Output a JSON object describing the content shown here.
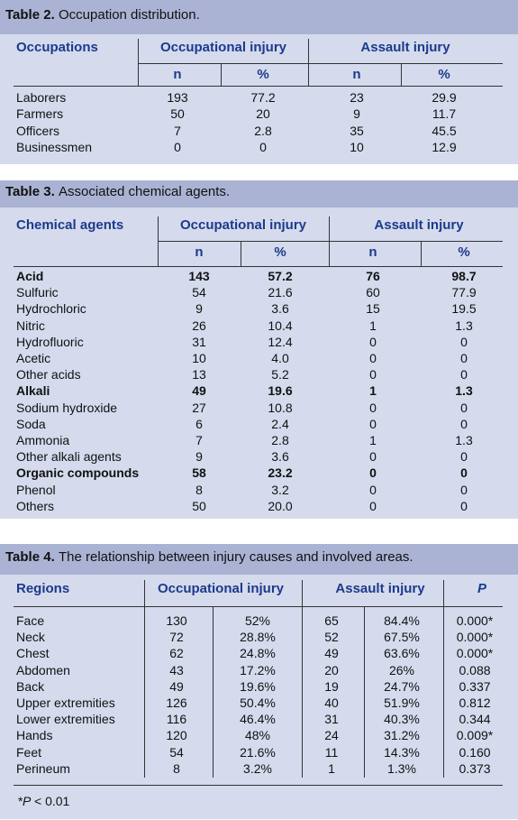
{
  "tables": [
    {
      "label": "Table 2.",
      "title": "Occupation distribution.",
      "header": {
        "first": "Occupations",
        "groups": [
          "Occupational injury",
          "Assault injury"
        ],
        "subheaders": [
          "n",
          "%",
          "n",
          "%"
        ]
      },
      "rows": [
        {
          "cells": [
            "Laborers",
            "193",
            "77.2",
            "23",
            "29.9"
          ]
        },
        {
          "cells": [
            "Farmers",
            "50",
            "20",
            "9",
            "11.7"
          ]
        },
        {
          "cells": [
            "Officers",
            "7",
            "2.8",
            "35",
            "45.5"
          ]
        },
        {
          "cells": [
            "Businessmen",
            "0",
            "0",
            "10",
            "12.9"
          ]
        }
      ]
    },
    {
      "label": "Table 3.",
      "title": "Associated chemical agents.",
      "header": {
        "first": "Chemical agents",
        "groups": [
          "Occupational injury",
          "Assault injury"
        ],
        "subheaders": [
          "n",
          "%",
          "n",
          "%"
        ]
      },
      "rows": [
        {
          "cells": [
            "Acid",
            "143",
            "57.2",
            "76",
            "98.7"
          ],
          "bold": true
        },
        {
          "cells": [
            "Sulfuric",
            "54",
            "21.6",
            "60",
            "77.9"
          ]
        },
        {
          "cells": [
            "Hydrochloric",
            "9",
            "3.6",
            "15",
            "19.5"
          ]
        },
        {
          "cells": [
            "Nitric",
            "26",
            "10.4",
            "1",
            "1.3"
          ]
        },
        {
          "cells": [
            "Hydrofluoric",
            "31",
            "12.4",
            "0",
            "0"
          ]
        },
        {
          "cells": [
            "Acetic",
            "10",
            "4.0",
            "0",
            "0"
          ]
        },
        {
          "cells": [
            "Other acids",
            "13",
            "5.2",
            "0",
            "0"
          ]
        },
        {
          "cells": [
            "Alkali",
            "49",
            "19.6",
            "1",
            "1.3"
          ],
          "bold": true
        },
        {
          "cells": [
            "Sodium hydroxide",
            "27",
            "10.8",
            "0",
            "0"
          ]
        },
        {
          "cells": [
            "Soda",
            "6",
            "2.4",
            "0",
            "0"
          ]
        },
        {
          "cells": [
            "Ammonia",
            "7",
            "2.8",
            "1",
            "1.3"
          ]
        },
        {
          "cells": [
            "Other alkali agents",
            "9",
            "3.6",
            "0",
            "0"
          ]
        },
        {
          "cells": [
            "Organic compounds",
            "58",
            "23.2",
            "0",
            "0"
          ],
          "bold": true
        },
        {
          "cells": [
            "Phenol",
            "8",
            "3.2",
            "0",
            "0"
          ]
        },
        {
          "cells": [
            "Others",
            "50",
            "20.0",
            "0",
            "0"
          ]
        }
      ]
    },
    {
      "label": "Table 4.",
      "title": "The relationship between injury causes and involved areas.",
      "header": {
        "first": "Regions",
        "groups": [
          "Occupational injury",
          "Assault injury",
          "P"
        ]
      },
      "rows": [
        {
          "cells": [
            "Face",
            "130",
            "52%",
            "65",
            "84.4%",
            "0.000*"
          ]
        },
        {
          "cells": [
            "Neck",
            "72",
            "28.8%",
            "52",
            "67.5%",
            "0.000*"
          ]
        },
        {
          "cells": [
            "Chest",
            "62",
            "24.8%",
            "49",
            "63.6%",
            "0.000*"
          ]
        },
        {
          "cells": [
            "Abdomen",
            "43",
            "17.2%",
            "20",
            "26%",
            "0.088"
          ]
        },
        {
          "cells": [
            "Back",
            "49",
            "19.6%",
            "19",
            "24.7%",
            "0.337"
          ]
        },
        {
          "cells": [
            "Upper extremities",
            "126",
            "50.4%",
            "40",
            "51.9%",
            "0.812"
          ]
        },
        {
          "cells": [
            "Lower extremities",
            "116",
            "46.4%",
            "31",
            "40.3%",
            "0.344"
          ]
        },
        {
          "cells": [
            "Hands",
            "120",
            "48%",
            "24",
            "31.2%",
            "0.009*"
          ]
        },
        {
          "cells": [
            "Feet",
            "54",
            "21.6%",
            "11",
            "14.3%",
            "0.160"
          ]
        },
        {
          "cells": [
            "Perineum",
            "8",
            "3.2%",
            "1",
            "1.3%",
            "0.373"
          ]
        }
      ],
      "footnote": {
        "mark": "*",
        "symbol": "P",
        "text": "< 0.01"
      }
    }
  ]
}
